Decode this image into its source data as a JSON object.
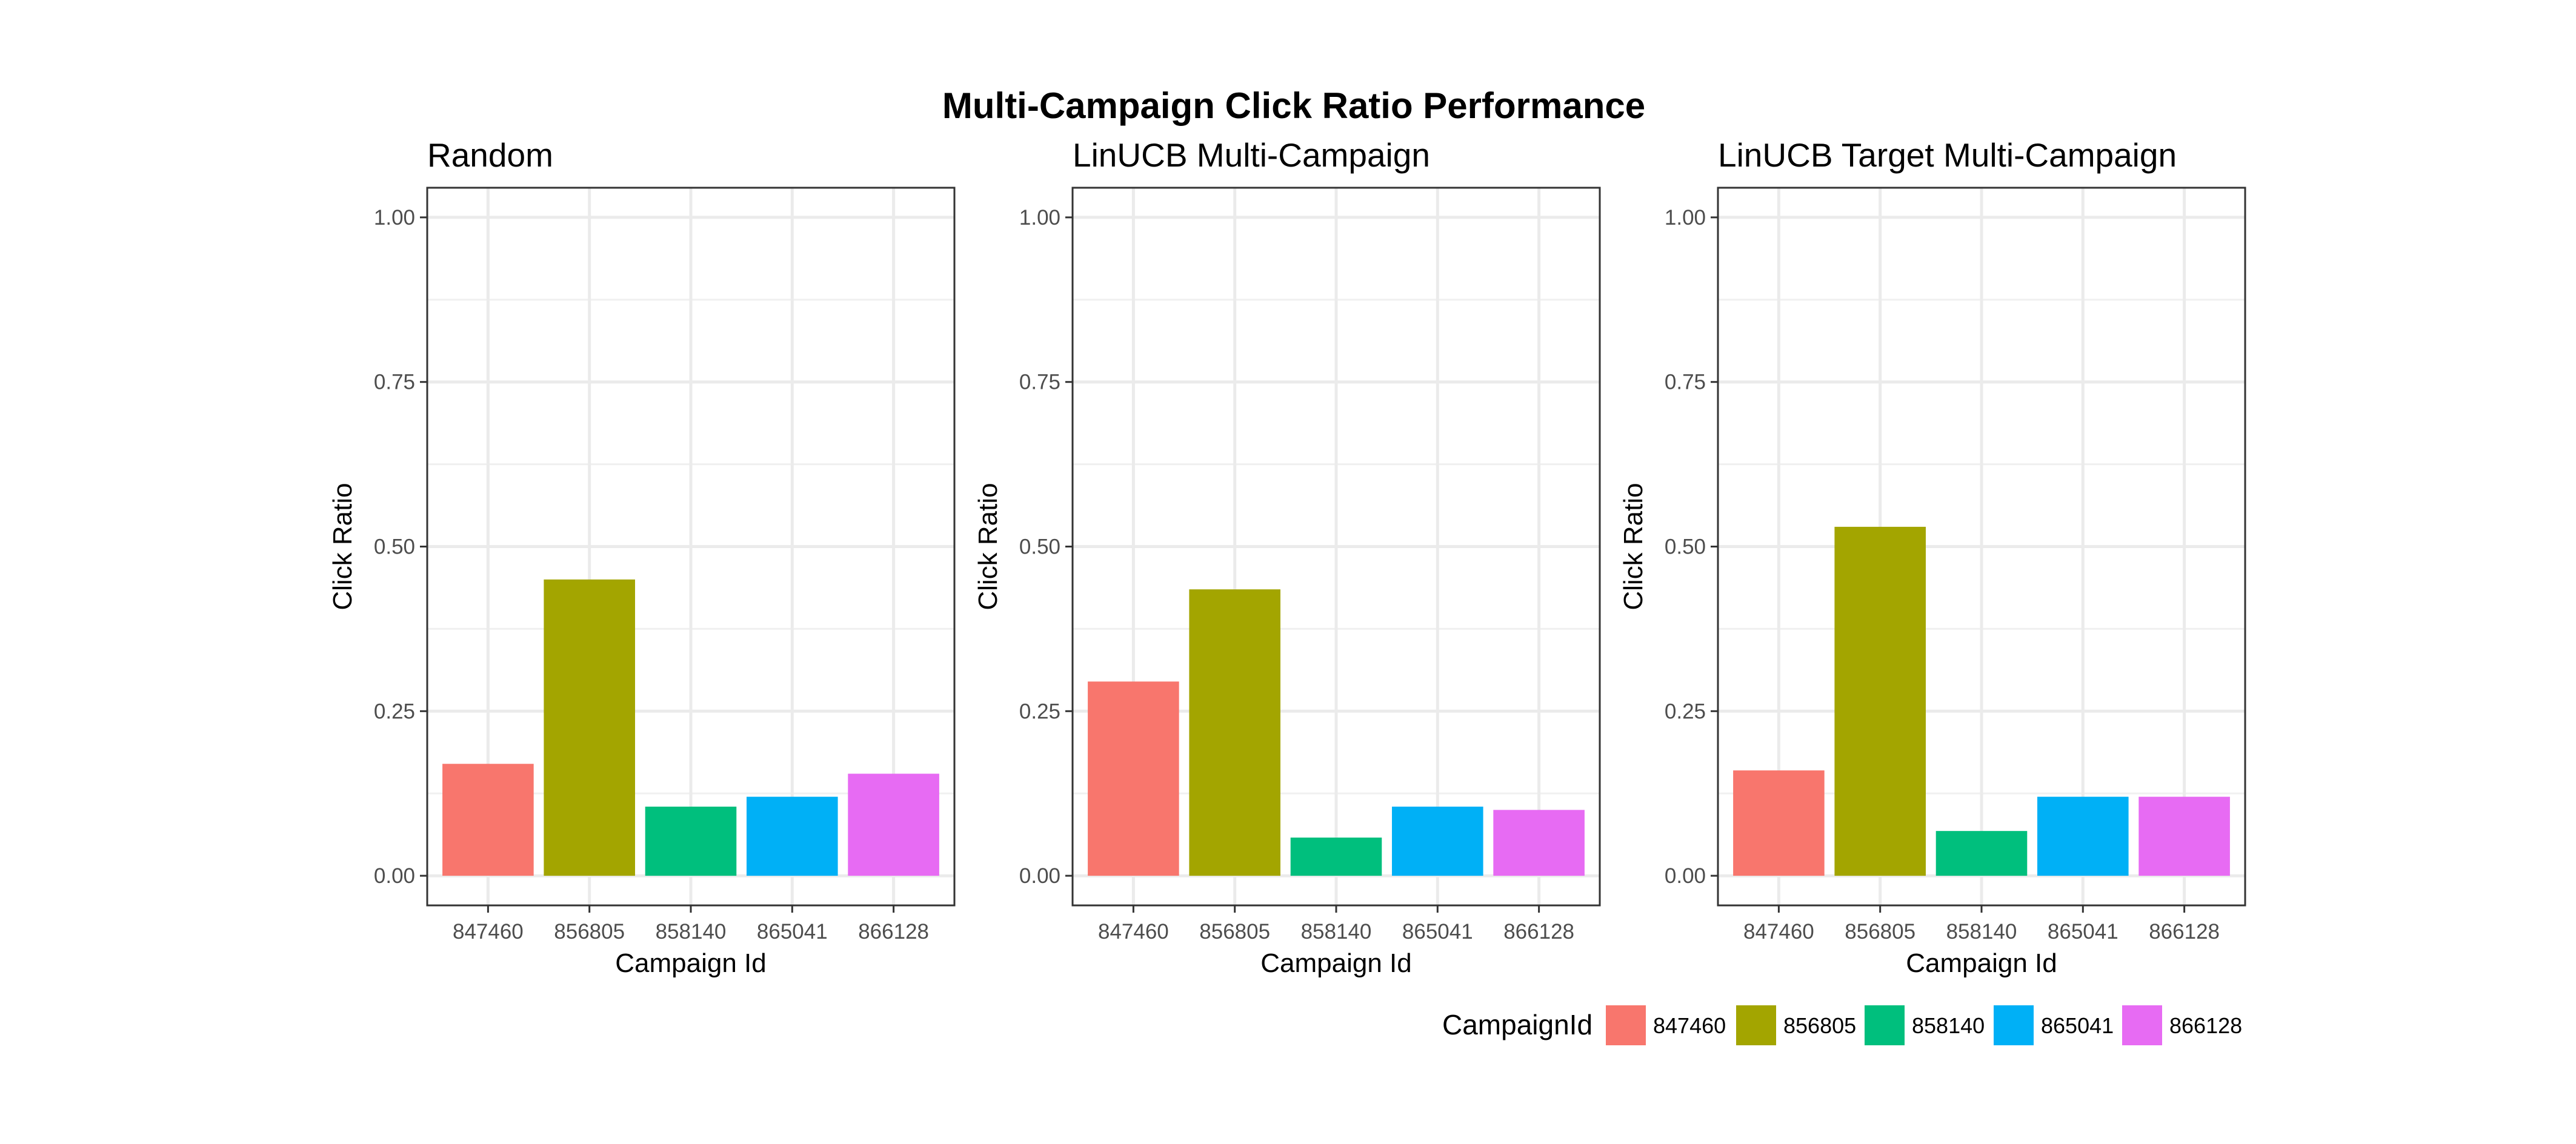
{
  "figure_title": "Multi-Campaign Click Ratio Performance",
  "legend": {
    "title": "CampaignId",
    "position": "bottom-right",
    "items": [
      {
        "label": "847460",
        "color": "#F8766D"
      },
      {
        "label": "856805",
        "color": "#A3A500"
      },
      {
        "label": "858140",
        "color": "#00BF7D"
      },
      {
        "label": "865041",
        "color": "#00B0F6"
      },
      {
        "label": "866128",
        "color": "#E76BF3"
      }
    ]
  },
  "chart_data": [
    {
      "type": "bar",
      "title": "Random",
      "xlabel": "Campaign Id",
      "ylabel": "Click Ratio",
      "categories": [
        "847460",
        "856805",
        "858140",
        "865041",
        "866128"
      ],
      "values": [
        0.17,
        0.45,
        0.105,
        0.12,
        0.155
      ],
      "ylim": [
        0,
        1
      ],
      "yticks": [
        "0.00",
        "0.25",
        "0.50",
        "0.75",
        "1.00"
      ],
      "grid": true
    },
    {
      "type": "bar",
      "title": "LinUCB Multi-Campaign",
      "xlabel": "Campaign Id",
      "ylabel": "Click Ratio",
      "categories": [
        "847460",
        "856805",
        "858140",
        "865041",
        "866128"
      ],
      "values": [
        0.295,
        0.435,
        0.058,
        0.105,
        0.1
      ],
      "ylim": [
        0,
        1
      ],
      "yticks": [
        "0.00",
        "0.25",
        "0.50",
        "0.75",
        "1.00"
      ],
      "grid": true
    },
    {
      "type": "bar",
      "title": "LinUCB Target Multi-Campaign",
      "xlabel": "Campaign Id",
      "ylabel": "Click Ratio",
      "categories": [
        "847460",
        "856805",
        "858140",
        "865041",
        "866128"
      ],
      "values": [
        0.16,
        0.53,
        0.068,
        0.12,
        0.12
      ],
      "ylim": [
        0,
        1
      ],
      "yticks": [
        "0.00",
        "0.25",
        "0.50",
        "0.75",
        "1.00"
      ],
      "grid": true
    }
  ]
}
